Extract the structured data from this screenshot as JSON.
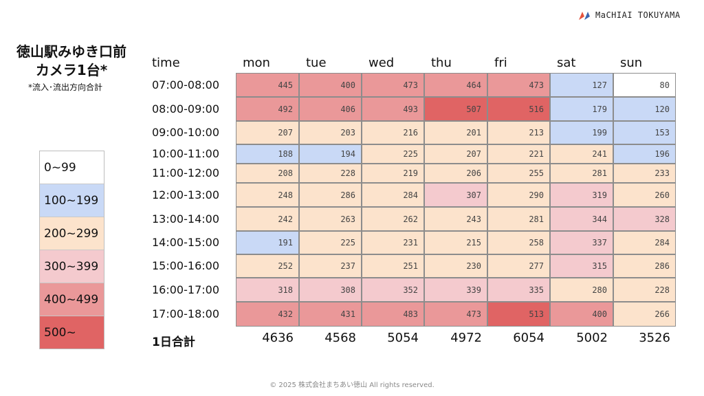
{
  "logo": {
    "text": "MaCHIAI TOKUYAMA"
  },
  "title_line1": "徳山駅みゆき口前",
  "title_line2": "カメラ1台*",
  "subtitle": "*流入･流出方向合計",
  "colors": {
    "0~99": "#ffffff",
    "100~199": "#c9d9f6",
    "200~299": "#fce3cc",
    "300~399": "#f4cace",
    "400~499": "#ea9899",
    "500~": "#e06464"
  },
  "legend": [
    {
      "label": "0~99",
      "color": "#ffffff"
    },
    {
      "label": "100~199",
      "color": "#c9d9f6"
    },
    {
      "label": "200~299",
      "color": "#fce3cc"
    },
    {
      "label": "300~399",
      "color": "#f4cace"
    },
    {
      "label": "400~499",
      "color": "#ea9899"
    },
    {
      "label": "500~",
      "color": "#e06464"
    }
  ],
  "chart_data": {
    "type": "heatmap",
    "row_header": "time",
    "columns": [
      "mon",
      "tue",
      "wed",
      "thu",
      "fri",
      "sat",
      "sun"
    ],
    "rows": [
      "07:00-08:00",
      "08:00-09:00",
      "09:00-10:00",
      "10:00-11:00",
      "11:00-12:00",
      "12:00-13:00",
      "13:00-14:00",
      "14:00-15:00",
      "15:00-16:00",
      "16:00-17:00",
      "17:00-18:00"
    ],
    "values": [
      [
        445,
        400,
        473,
        464,
        473,
        127,
        80
      ],
      [
        492,
        406,
        493,
        507,
        516,
        179,
        120
      ],
      [
        207,
        203,
        216,
        201,
        213,
        199,
        153
      ],
      [
        188,
        194,
        225,
        207,
        221,
        241,
        196
      ],
      [
        208,
        228,
        219,
        206,
        255,
        281,
        233
      ],
      [
        248,
        286,
        284,
        307,
        290,
        319,
        260
      ],
      [
        242,
        263,
        262,
        243,
        281,
        344,
        328
      ],
      [
        191,
        225,
        231,
        215,
        258,
        337,
        284
      ],
      [
        252,
        237,
        251,
        230,
        277,
        315,
        286
      ],
      [
        318,
        308,
        352,
        339,
        335,
        280,
        228
      ],
      [
        432,
        431,
        483,
        473,
        513,
        400,
        266
      ]
    ],
    "total_label": "1日合計",
    "totals": [
      "4636",
      "4568",
      "5054",
      "4972",
      "6054",
      "5002",
      "3526"
    ]
  },
  "footer": "© 2025 株式会社まちあい徳山  All rights reserved."
}
